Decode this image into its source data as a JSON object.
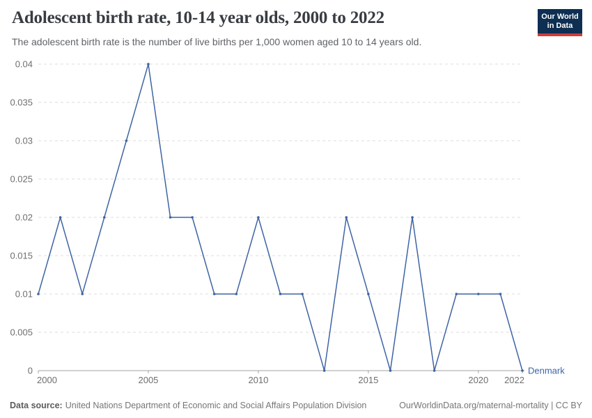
{
  "header": {
    "title": "Adolescent birth rate, 10-14 year olds, 2000 to 2022",
    "subtitle": "The adolescent birth rate is the number of live births per 1,000 women aged 10 to 14 years old.",
    "logo": {
      "line1": "Our World",
      "line2": "in Data",
      "bg_color": "#0e2e52",
      "accent_color": "#cf3b3b"
    }
  },
  "chart_data": {
    "type": "line",
    "title": "Adolescent birth rate, 10-14 year olds, 2000 to 2022",
    "xlabel": "",
    "ylabel": "",
    "xlim": [
      2000,
      2022
    ],
    "ylim": [
      0,
      0.04
    ],
    "x_ticks": [
      2000,
      2005,
      2010,
      2015,
      2020,
      2022
    ],
    "y_ticks": [
      0,
      0.005,
      0.01,
      0.015,
      0.02,
      0.025,
      0.03,
      0.035,
      0.04
    ],
    "grid": "horizontal-dashed",
    "grid_color": "#dcdcdc",
    "axis_color": "#a3a3a3",
    "tick_label_color": "#6e6e6e",
    "legend_position": "end-of-line",
    "series": [
      {
        "name": "Denmark",
        "color": "#3e64a4",
        "x": [
          2000,
          2001,
          2002,
          2003,
          2004,
          2005,
          2006,
          2007,
          2008,
          2009,
          2010,
          2011,
          2012,
          2013,
          2014,
          2015,
          2016,
          2017,
          2018,
          2019,
          2020,
          2021,
          2022
        ],
        "values": [
          0.01,
          0.02,
          0.01,
          0.02,
          0.03,
          0.04,
          0.02,
          0.02,
          0.01,
          0.01,
          0.02,
          0.01,
          0.01,
          0,
          0.02,
          0.01,
          0,
          0.02,
          0,
          0.01,
          0.01,
          0.01,
          0
        ]
      }
    ]
  },
  "footer": {
    "source_label": "Data source:",
    "source": "United Nations Department of Economic and Social Affairs Population Division",
    "credit": "OurWorldinData.org/maternal-mortality | CC BY"
  }
}
